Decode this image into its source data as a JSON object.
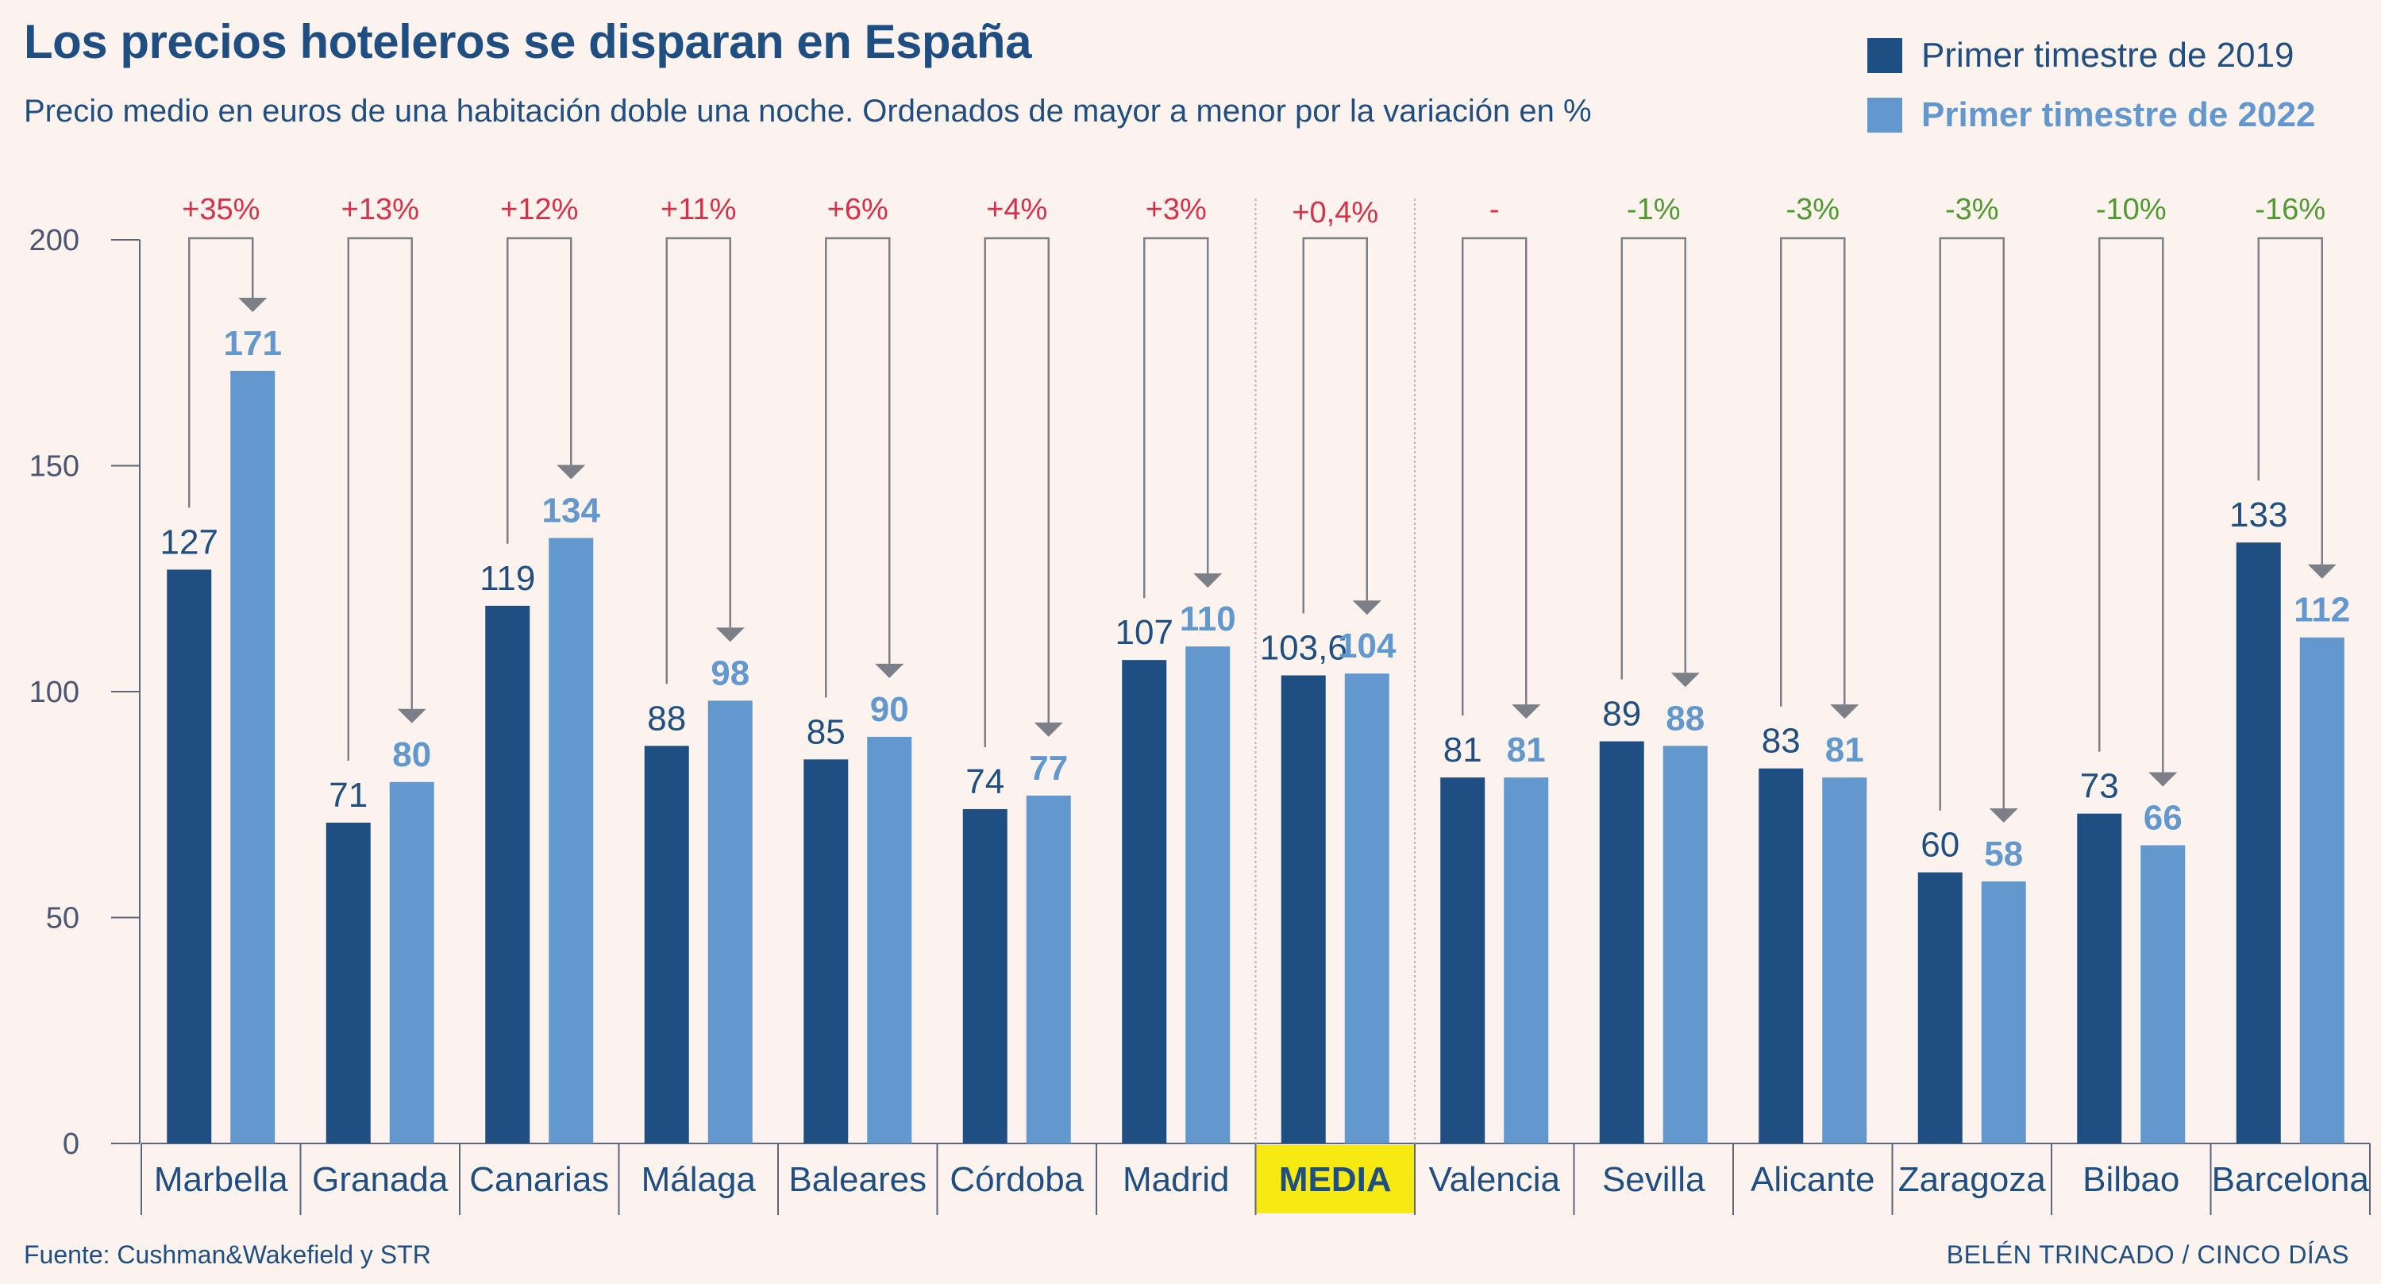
{
  "title": "Los precios hoteleros se disparan en España",
  "subtitle": "Precio medio en euros de una habitación doble una noche. Ordenados de mayor a menor por la variación en %",
  "legend": [
    {
      "label": "Primer timestre de 2019",
      "color": "#1f4f82"
    },
    {
      "label": "Primer timestre de 2022",
      "color": "#6398cf"
    }
  ],
  "source": "Fuente: Cushman&Wakefield y STR",
  "credit": "BELÉN TRINCADO / CINCO DÍAS",
  "colors": {
    "series_2019": "#1f4f82",
    "series_2022": "#6398cf",
    "positive": "#d9304a",
    "negative": "#4e9a2f",
    "neutral": "#d9304a",
    "arrow": "#7d7f88",
    "axis": "#5c667e",
    "highlight": "#f7ea12"
  },
  "chart_data": {
    "type": "bar",
    "title": "Los precios hoteleros se disparan en España",
    "ylim": [
      0,
      200
    ],
    "yticks": [
      0,
      50,
      100,
      150,
      200
    ],
    "highlight_category": "MEDIA",
    "categories": [
      "Marbella",
      "Granada",
      "Canarias",
      "Málaga",
      "Baleares",
      "Córdoba",
      "Madrid",
      "MEDIA",
      "Valencia",
      "Sevilla",
      "Alicante",
      "Zaragoza",
      "Bilbao",
      "Barcelona"
    ],
    "series": [
      {
        "name": "Primer timestre de 2019",
        "values": [
          127,
          71,
          119,
          88,
          85,
          74,
          107,
          103.6,
          81,
          89,
          83,
          60,
          73,
          133
        ],
        "labels": [
          "127",
          "71",
          "119",
          "88",
          "85",
          "74",
          "107",
          "103,6",
          "81",
          "89",
          "83",
          "60",
          "73",
          "133"
        ]
      },
      {
        "name": "Primer timestre de 2022",
        "values": [
          171,
          80,
          134,
          98,
          90,
          77,
          110,
          104,
          81,
          88,
          81,
          58,
          66,
          112
        ],
        "labels": [
          "171",
          "80",
          "134",
          "98",
          "90",
          "77",
          "110",
          "104",
          "81",
          "88",
          "81",
          "58",
          "66",
          "112"
        ]
      }
    ],
    "variation": [
      "+35%",
      "+13%",
      "+12%",
      "+11%",
      "+6%",
      "+4%",
      "+3%",
      "+0,4%",
      "-",
      "-1%",
      "-3%",
      "-3%",
      "-10%",
      "-16%"
    ]
  }
}
